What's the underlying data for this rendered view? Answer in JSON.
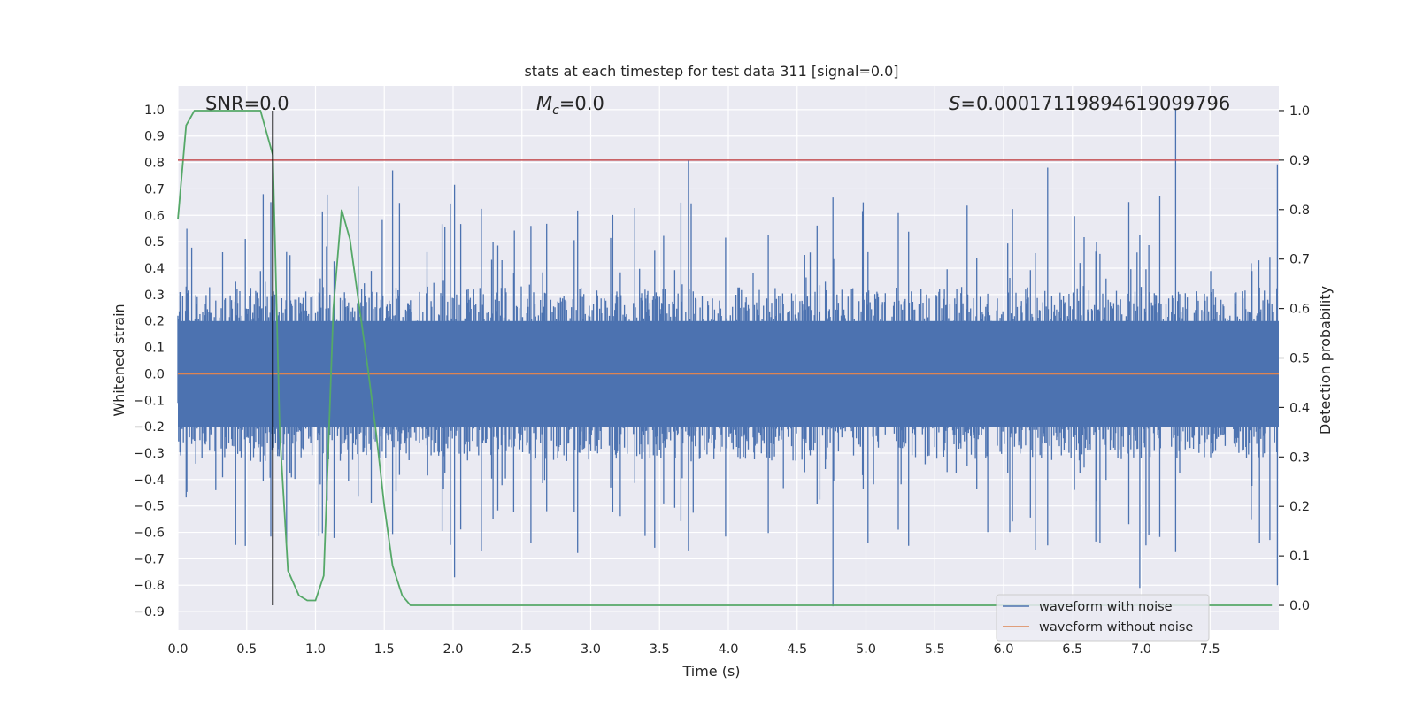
{
  "chart_data": {
    "type": "line",
    "title": "stats at each timestep for test data 311 [signal=0.0]",
    "xlabel": "Time (s)",
    "ylabel": "Whitened strain",
    "y2label": "Detection probability",
    "xlim": [
      0.0,
      8.0
    ],
    "ylim": [
      -0.97,
      1.09
    ],
    "y2lim": [
      -0.05,
      1.05
    ],
    "xticks": [
      0.0,
      0.5,
      1.0,
      1.5,
      2.0,
      2.5,
      3.0,
      3.5,
      4.0,
      4.5,
      5.0,
      5.5,
      6.0,
      6.5,
      7.0,
      7.5
    ],
    "xtick_labels": [
      "0.0",
      "0.5",
      "1.0",
      "1.5",
      "2.0",
      "2.5",
      "3.0",
      "3.5",
      "4.0",
      "4.5",
      "5.0",
      "5.5",
      "6.0",
      "6.5",
      "7.0",
      "7.5"
    ],
    "yticks": [
      -0.9,
      -0.8,
      -0.7,
      -0.6,
      -0.5,
      -0.4,
      -0.3,
      -0.2,
      -0.1,
      0.0,
      0.1,
      0.2,
      0.3,
      0.4,
      0.5,
      0.6,
      0.7,
      0.8,
      0.9,
      1.0
    ],
    "ytick_labels": [
      "−0.9",
      "−0.8",
      "−0.7",
      "−0.6",
      "−0.5",
      "−0.4",
      "−0.3",
      "−0.2",
      "−0.1",
      "0.0",
      "0.1",
      "0.2",
      "0.3",
      "0.4",
      "0.5",
      "0.6",
      "0.7",
      "0.8",
      "0.9",
      "1.0"
    ],
    "y2ticks": [
      0.0,
      0.1,
      0.2,
      0.3,
      0.4,
      0.5,
      0.6,
      0.7,
      0.8,
      0.9,
      1.0
    ],
    "y2tick_labels": [
      "0.0",
      "0.1",
      "0.2",
      "0.3",
      "0.4",
      "0.5",
      "0.6",
      "0.7",
      "0.8",
      "0.9",
      "1.0"
    ],
    "grid": true,
    "annotations": {
      "snr": "SNR=0.0",
      "mc": "=0.0",
      "mc_symbol": "M",
      "mc_sub": "c",
      "s": "=0.00017119894619099796",
      "s_symbol": "S"
    },
    "series": [
      {
        "name": "waveform with noise",
        "color": "#4c72b0",
        "axis": "left",
        "noise": {
          "n_samples": 1600,
          "typical_range": [
            -0.33,
            0.33
          ],
          "spike_max": 1.0,
          "spike_min": -0.88
        },
        "peaks": [
          {
            "x": 0.62,
            "y": 0.68
          },
          {
            "x": 0.69,
            "y": -0.73
          },
          {
            "x": 1.31,
            "y": 0.71
          },
          {
            "x": 1.56,
            "y": 0.77
          },
          {
            "x": 2.01,
            "y": -0.77
          },
          {
            "x": 3.71,
            "y": 0.81
          },
          {
            "x": 4.76,
            "y": -0.88
          },
          {
            "x": 6.32,
            "y": 0.78
          },
          {
            "x": 6.99,
            "y": -0.81
          },
          {
            "x": 7.25,
            "y": 1.0
          },
          {
            "x": 7.99,
            "y": -0.8
          }
        ]
      },
      {
        "name": "waveform without noise",
        "color": "#dd8452",
        "axis": "left",
        "x": [
          0.0,
          8.0
        ],
        "y": [
          0.0,
          0.0
        ]
      },
      {
        "name": "",
        "color": "#55a868",
        "axis": "right",
        "x": [
          0.0,
          0.06,
          0.12,
          0.2,
          0.3,
          0.4,
          0.5,
          0.6,
          0.69,
          0.74,
          0.8,
          0.88,
          0.94,
          1.0,
          1.06,
          1.13,
          1.19,
          1.25,
          1.31,
          1.38,
          1.44,
          1.5,
          1.56,
          1.63,
          1.69,
          1.75,
          2.0,
          3.0,
          4.0,
          5.0,
          6.0,
          7.0,
          7.95
        ],
        "y": [
          0.78,
          0.97,
          1.0,
          1.0,
          1.0,
          1.0,
          1.0,
          1.0,
          0.91,
          0.35,
          0.07,
          0.02,
          0.01,
          0.01,
          0.06,
          0.6,
          0.8,
          0.74,
          0.62,
          0.48,
          0.35,
          0.2,
          0.08,
          0.02,
          0.0,
          0.0,
          0.0,
          0.0,
          0.0,
          0.0,
          0.0,
          0.0,
          0.0
        ]
      }
    ],
    "reference_lines": {
      "threshold": {
        "axis": "right",
        "y": 0.9,
        "color": "#c44e52"
      },
      "current_time": {
        "x": 0.69,
        "color": "#000000"
      }
    },
    "legend": {
      "placement": "lower-right",
      "entries": [
        "waveform with noise",
        "waveform without noise"
      ]
    }
  }
}
